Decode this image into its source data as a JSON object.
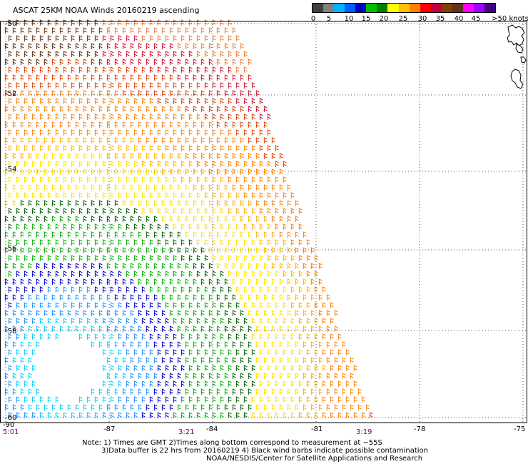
{
  "title": "ASCAT 25KM NOAA Winds 20160219 ascending",
  "legend": {
    "labels": [
      "0",
      "5",
      "10",
      "15",
      "20",
      "25",
      "30",
      "35",
      "40",
      "45",
      ">50 knots"
    ],
    "colors": [
      "#404040",
      "#808080",
      "#00b4ff",
      "#0060ff",
      "#0000c0",
      "#00c000",
      "#008000",
      "#ffff00",
      "#ffc000",
      "#ff8000",
      "#ff0000",
      "#c00040",
      "#804000",
      "#603020",
      "#ff00ff",
      "#a000ff",
      "#400080"
    ]
  },
  "axes": {
    "lat_labels": [
      "-50",
      "-52",
      "-54",
      "-56",
      "-58",
      "-60"
    ],
    "lon_labels": [
      "-90",
      "-87",
      "-84",
      "-81",
      "-78",
      "-75"
    ],
    "time_labels": [
      "5:01",
      "3:21",
      "3:19"
    ]
  },
  "notes": {
    "line1": "Note: 1) Times are GMT 2)Times along bottom correspond to measurement at ~55S",
    "line2": "3)Data buffer is 22 hrs from 20160219 4) Black wind barbs indicate possible contamination",
    "line3": "NOAA/NESDIS/Center for Satellite Applications and Research"
  }
}
